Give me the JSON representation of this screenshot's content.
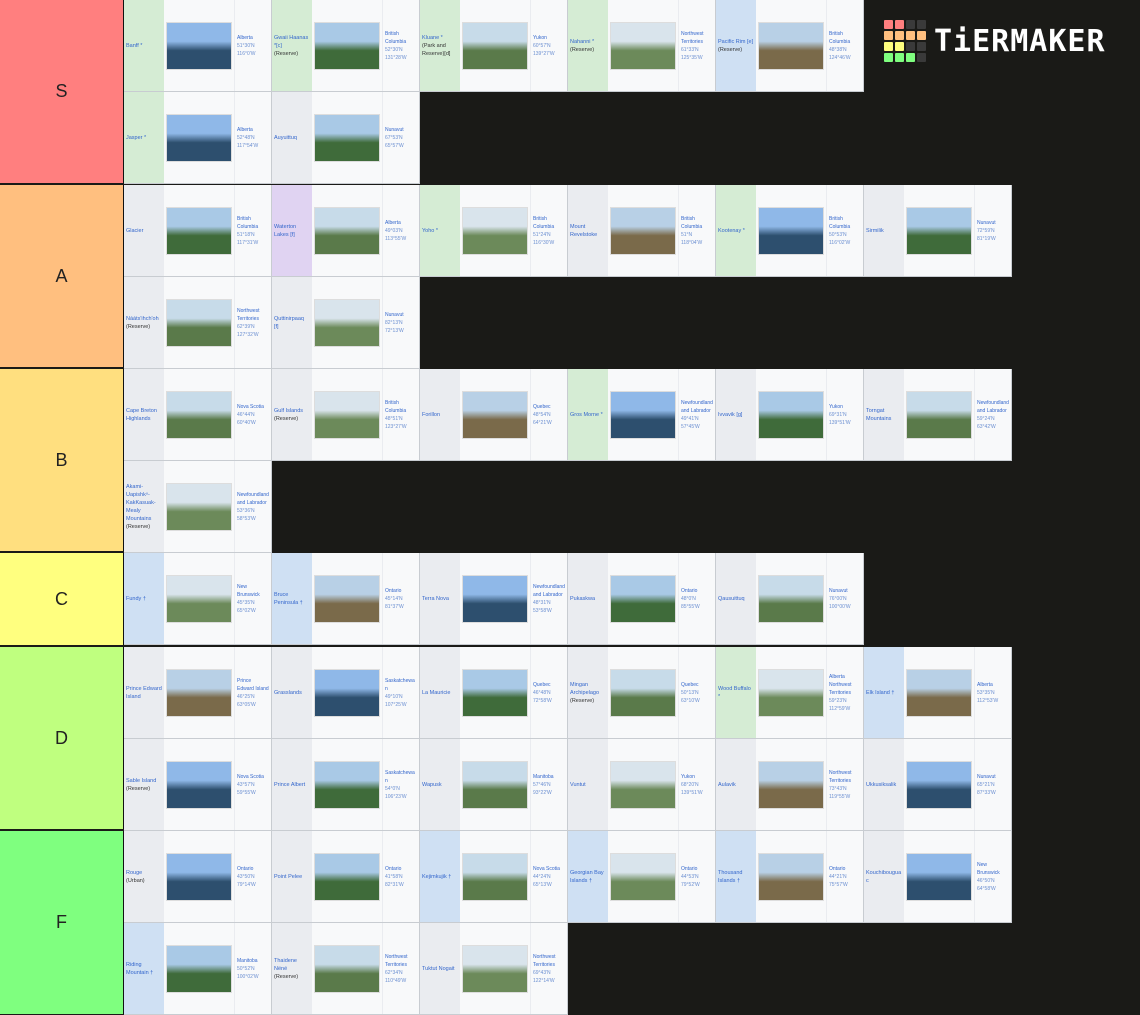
{
  "logo": {
    "text": "TiERMAKER",
    "grid_colors": [
      "#ff7f7f",
      "#ff7f7f",
      "#3a3a3a",
      "#3a3a3a",
      "#ffbf7f",
      "#ffbf7f",
      "#ffbf7f",
      "#ffbf7f",
      "#ffff7f",
      "#ffff7f",
      "#3a3a3a",
      "#3a3a3a",
      "#7fff7f",
      "#7fff7f",
      "#7fff7f",
      "#3a3a3a"
    ]
  },
  "cell_colors": {
    "green": "#d5ecd4",
    "blue": "#cfe0f3",
    "gray": "#eaecf0",
    "purple": "#e0d3f2"
  },
  "tiers": [
    {
      "label": "S",
      "color": "#ff7f7f",
      "items": [
        {
          "name": "Banff *",
          "sub": "",
          "loc": "Alberta",
          "coord": "51°30′N 116°0′W",
          "bg": "green"
        },
        {
          "name": "Gwaii Haanas *[c]",
          "sub": "(Reserve)",
          "loc": "British Columbia",
          "coord": "52°30′N 131°28′W",
          "bg": "green"
        },
        {
          "name": "Kluane *",
          "sub": "(Park and Reserve)[d]",
          "loc": "Yukon",
          "coord": "60°57′N 139°27′W",
          "bg": "green"
        },
        {
          "name": "Nahanni *",
          "sub": "(Reserve)",
          "loc": "Northwest Territories",
          "coord": "61°33′N 125°35′W",
          "bg": "green"
        },
        {
          "name": "Pacific Rim [e]",
          "sub": "(Reserve)",
          "loc": "British Columbia",
          "coord": "48°38′N 124°46′W",
          "bg": "blue"
        },
        {
          "name": "Jasper *",
          "sub": "",
          "loc": "Alberta",
          "coord": "52°48′N 117°54′W",
          "bg": "green"
        },
        {
          "name": "Auyuittuq",
          "sub": "",
          "loc": "Nunavut",
          "coord": "67°53′N 65°57′W",
          "bg": "gray"
        }
      ]
    },
    {
      "label": "A",
      "color": "#ffbf7f",
      "items": [
        {
          "name": "Glacier",
          "sub": "",
          "loc": "British Columbia",
          "coord": "51°18′N 117°31′W",
          "bg": "gray"
        },
        {
          "name": "Waterton Lakes [f]",
          "sub": "",
          "loc": "Alberta",
          "coord": "49°03′N 113°55′W",
          "bg": "purple"
        },
        {
          "name": "Yoho *",
          "sub": "",
          "loc": "British Columbia",
          "coord": "51°24′N 116°30′W",
          "bg": "green"
        },
        {
          "name": "Mount Revelstoke",
          "sub": "",
          "loc": "British Columbia",
          "coord": "51°N 118°04′W",
          "bg": "gray"
        },
        {
          "name": "Kootenay *",
          "sub": "",
          "loc": "British Columbia",
          "coord": "50°53′N 116°02′W",
          "bg": "green"
        },
        {
          "name": "Sirmilik",
          "sub": "",
          "loc": "Nunavut",
          "coord": "72°59′N 81°19′W",
          "bg": "gray"
        },
        {
          "name": "Nááts'ihch'oh",
          "sub": "(Reserve)",
          "loc": "Northwest Territories",
          "coord": "62°39′N 127°32′W",
          "bg": "gray"
        },
        {
          "name": "Quttinirpaaq [f]",
          "sub": "",
          "loc": "Nunavut",
          "coord": "82°13′N 72°13′W",
          "bg": "gray"
        }
      ]
    },
    {
      "label": "B",
      "color": "#ffdf7f",
      "items": [
        {
          "name": "Cape Breton Highlands",
          "sub": "",
          "loc": "Nova Scotia",
          "coord": "46°44′N 60°40′W",
          "bg": "gray"
        },
        {
          "name": "Gulf Islands",
          "sub": "(Reserve)",
          "loc": "British Columbia",
          "coord": "48°51′N 123°27′W",
          "bg": "gray"
        },
        {
          "name": "Forillon",
          "sub": "",
          "loc": "Quebec",
          "coord": "48°54′N 64°21′W",
          "bg": "gray"
        },
        {
          "name": "Gros Morne *",
          "sub": "",
          "loc": "Newfoundland and Labrador",
          "coord": "49°41′N 57°45′W",
          "bg": "green"
        },
        {
          "name": "Ivvavik [g]",
          "sub": "",
          "loc": "Yukon",
          "coord": "69°31′N 139°51′W",
          "bg": "gray"
        },
        {
          "name": "Torngat Mountains",
          "sub": "",
          "loc": "Newfoundland and Labrador",
          "coord": "59°24′N 63°42′W",
          "bg": "gray"
        },
        {
          "name": "Akami-Uapishkᵘ-KakKasuak-Mealy Mountains",
          "sub": "(Reserve)",
          "loc": "Newfoundland and Labrador",
          "coord": "53°36′N 58°53′W",
          "bg": "gray"
        }
      ]
    },
    {
      "label": "C",
      "color": "#ffff7f",
      "items": [
        {
          "name": "Fundy †",
          "sub": "",
          "loc": "New Brunswick",
          "coord": "45°35′N 65°02′W",
          "bg": "blue"
        },
        {
          "name": "Bruce Peninsula †",
          "sub": "",
          "loc": "Ontario",
          "coord": "45°14′N 81°37′W",
          "bg": "blue"
        },
        {
          "name": "Terra Nova",
          "sub": "",
          "loc": "Newfoundland and Labrador",
          "coord": "48°31′N 53°58′W",
          "bg": "gray"
        },
        {
          "name": "Pukaskwa",
          "sub": "",
          "loc": "Ontario",
          "coord": "48°0′N 85°55′W",
          "bg": "gray"
        },
        {
          "name": "Qausuittuq",
          "sub": "",
          "loc": "Nunavut",
          "coord": "76°00′N 100°00′W",
          "bg": "gray"
        }
      ]
    },
    {
      "label": "D",
      "color": "#bfff7f",
      "items": [
        {
          "name": "Prince Edward Island",
          "sub": "",
          "loc": "Prince Edward Island",
          "coord": "46°25′N 63°05′W",
          "bg": "gray"
        },
        {
          "name": "Grasslands",
          "sub": "",
          "loc": "Saskatchewan",
          "coord": "49°10′N 107°25′W",
          "bg": "gray"
        },
        {
          "name": "La Mauricie",
          "sub": "",
          "loc": "Quebec",
          "coord": "46°48′N 72°58′W",
          "bg": "gray"
        },
        {
          "name": "Mingan Archipelago",
          "sub": "(Reserve)",
          "loc": "Quebec",
          "coord": "50°13′N 63°10′W",
          "bg": "gray"
        },
        {
          "name": "Wood Buffalo *",
          "sub": "",
          "loc": "Alberta Northwest Territories",
          "coord": "59°23′N 112°59′W",
          "bg": "green"
        },
        {
          "name": "Elk Island †",
          "sub": "",
          "loc": "Alberta",
          "coord": "53°35′N 112°53′W",
          "bg": "blue"
        },
        {
          "name": "Sable Island",
          "sub": "(Reserve)",
          "loc": "Nova Scotia",
          "coord": "43°57′N 59°55′W",
          "bg": "gray"
        },
        {
          "name": "Prince Albert",
          "sub": "",
          "loc": "Saskatchewan",
          "coord": "54°0′N 106°23′W",
          "bg": "gray"
        },
        {
          "name": "Wapusk",
          "sub": "",
          "loc": "Manitoba",
          "coord": "57°46′N 93°22′W",
          "bg": "gray"
        },
        {
          "name": "Vuntut",
          "sub": "",
          "loc": "Yukon",
          "coord": "68°20′N 139°51′W",
          "bg": "gray"
        },
        {
          "name": "Aulavik",
          "sub": "",
          "loc": "Northwest Territories",
          "coord": "73°43′N 119°55′W",
          "bg": "gray"
        },
        {
          "name": "Ukkusiksalik",
          "sub": "",
          "loc": "Nunavut",
          "coord": "65°21′N 87°33′W",
          "bg": "gray"
        }
      ]
    },
    {
      "label": "F",
      "color": "#7fff7f",
      "items": [
        {
          "name": "Rouge",
          "sub": "(Urban)",
          "loc": "Ontario",
          "coord": "43°50′N 79°14′W",
          "bg": "gray"
        },
        {
          "name": "Point Pelee",
          "sub": "",
          "loc": "Ontario",
          "coord": "41°58′N 82°31′W",
          "bg": "gray"
        },
        {
          "name": "Kejimkujik †",
          "sub": "",
          "loc": "Nova Scotia",
          "coord": "44°24′N 65°13′W",
          "bg": "blue"
        },
        {
          "name": "Georgian Bay Islands †",
          "sub": "",
          "loc": "Ontario",
          "coord": "44°53′N 79°52′W",
          "bg": "blue"
        },
        {
          "name": "Thousand Islands †",
          "sub": "",
          "loc": "Ontario",
          "coord": "44°21′N 75°57′W",
          "bg": "blue"
        },
        {
          "name": "Kouchibouguac",
          "sub": "",
          "loc": "New Brunswick",
          "coord": "46°50′N 64°58′W",
          "bg": "gray"
        },
        {
          "name": "Riding Mountain †",
          "sub": "",
          "loc": "Manitoba",
          "coord": "50°52′N 100°02′W",
          "bg": "blue"
        },
        {
          "name": "Thaidene Nëné",
          "sub": "(Reserve)",
          "loc": "Northwest Territories",
          "coord": "62°34′N 110°49′W",
          "bg": "gray"
        },
        {
          "name": "Tuktut Nogait",
          "sub": "",
          "loc": "Northwest Territories",
          "coord": "69°43′N 122°14′W",
          "bg": "gray"
        }
      ]
    }
  ]
}
